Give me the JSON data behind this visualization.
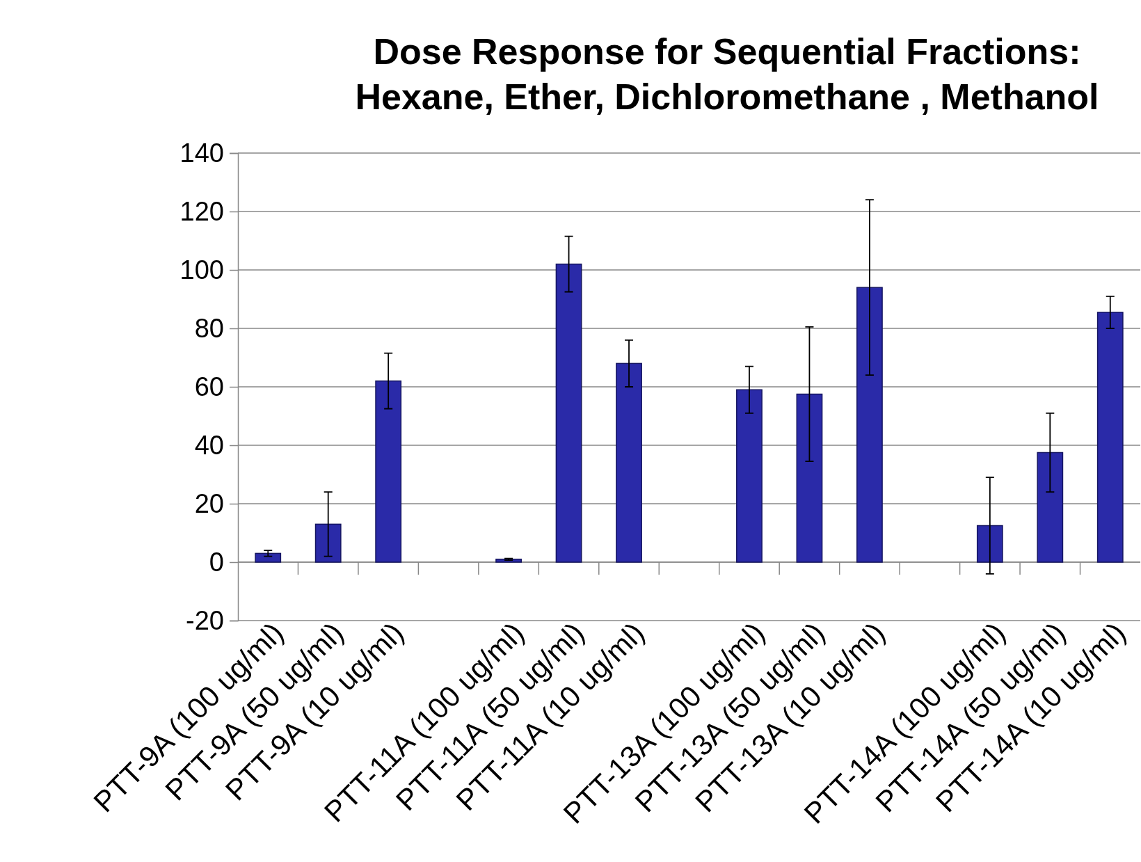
{
  "chart_data": {
    "type": "bar",
    "title": "Dose Response for Sequential Fractions:\nHexane, Ether, Dichloromethane , Methanol",
    "categories": [
      "PTT-9A (100 ug/ml)",
      "PTT-9A (50 ug/ml)",
      "PTT-9A (10 ug/ml)",
      null,
      "PTT-11A (100 ug/ml)",
      "PTT-11A (50 ug/ml)",
      "PTT-11A (10 ug/ml)",
      null,
      "PTT-13A (100 ug/ml)",
      "PTT-13A (50 ug/ml)",
      "PTT-13A (10 ug/ml)",
      null,
      "PTT-14A (100 ug/ml)",
      "PTT-14A (50 ug/ml)",
      "PTT-14A (10 ug/ml)"
    ],
    "values": [
      3,
      13,
      62,
      null,
      1,
      102,
      68,
      null,
      59,
      57.5,
      94,
      null,
      12.5,
      37.5,
      85.5
    ],
    "errors": [
      1,
      11,
      9.5,
      null,
      0.3,
      9.5,
      8,
      null,
      8,
      23,
      30,
      null,
      16.5,
      13.5,
      5.5
    ],
    "color": "#2a2aa8",
    "ylim": [
      -20,
      140
    ],
    "yticks": [
      -20,
      0,
      20,
      40,
      60,
      80,
      100,
      120,
      140
    ],
    "grid": "y"
  }
}
